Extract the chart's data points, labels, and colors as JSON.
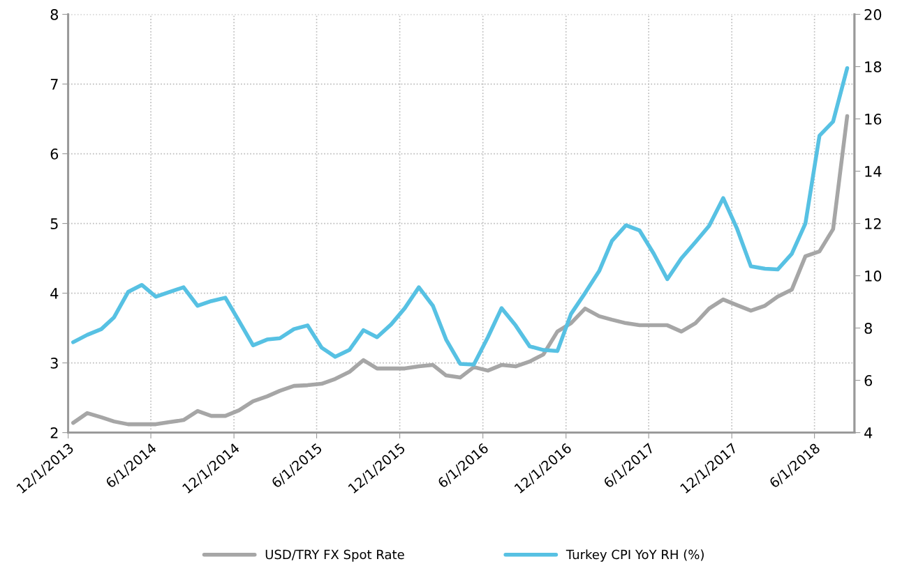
{
  "chart_data": {
    "type": "line",
    "x": [
      "2013-12-12",
      "2014-01-12",
      "2014-02-12",
      "2014-03-12",
      "2014-04-12",
      "2014-05-12",
      "2014-06-12",
      "2014-07-12",
      "2014-08-12",
      "2014-09-12",
      "2014-10-12",
      "2014-11-12",
      "2014-12-12",
      "2015-01-12",
      "2015-02-12",
      "2015-03-12",
      "2015-04-12",
      "2015-05-12",
      "2015-06-12",
      "2015-07-12",
      "2015-08-12",
      "2015-09-12",
      "2015-10-12",
      "2015-11-12",
      "2015-12-12",
      "2016-01-12",
      "2016-02-12",
      "2016-03-12",
      "2016-04-12",
      "2016-05-12",
      "2016-06-12",
      "2016-07-12",
      "2016-08-12",
      "2016-09-12",
      "2016-10-12",
      "2016-11-12",
      "2016-12-12",
      "2017-01-12",
      "2017-02-12",
      "2017-03-12",
      "2017-04-12",
      "2017-05-12",
      "2017-06-12",
      "2017-07-12",
      "2017-08-12",
      "2017-09-12",
      "2017-10-12",
      "2017-11-12",
      "2017-12-12",
      "2018-01-12",
      "2018-02-12",
      "2018-03-12",
      "2018-04-12",
      "2018-05-12",
      "2018-06-12",
      "2018-07-12",
      "2018-08-12"
    ],
    "series": [
      {
        "name": "USD/TRY FX Spot Rate",
        "color": "#a6a6a6",
        "values": [
          2.14,
          2.28,
          2.22,
          2.16,
          2.12,
          2.12,
          2.12,
          2.15,
          2.18,
          2.31,
          2.24,
          2.24,
          2.32,
          2.45,
          2.52,
          2.6,
          2.67,
          2.68,
          2.7,
          2.77,
          2.87,
          3.04,
          2.92,
          2.92,
          2.92,
          2.95,
          2.97,
          2.82,
          2.79,
          2.94,
          2.89,
          2.97,
          2.95,
          3.02,
          3.12,
          3.45,
          3.57,
          3.78,
          3.67,
          3.62,
          3.57,
          3.54,
          3.54,
          3.54,
          3.45,
          3.57,
          3.78,
          3.91,
          3.83,
          3.75,
          3.82,
          3.95,
          4.05,
          4.53,
          4.6,
          4.92,
          6.54
        ]
      },
      {
        "name": "Turkey CPI YoY RH (%)",
        "color": "#57c1e3",
        "axis": "y2",
        "values": [
          7.46,
          7.74,
          7.96,
          8.41,
          9.38,
          9.65,
          9.2,
          9.38,
          9.56,
          8.85,
          9.03,
          9.16,
          8.27,
          7.34,
          7.56,
          7.61,
          7.96,
          8.1,
          7.25,
          6.9,
          7.16,
          7.92,
          7.65,
          8.14,
          8.76,
          9.56,
          8.85,
          7.56,
          6.63,
          6.6,
          7.65,
          8.76,
          8.1,
          7.3,
          7.16,
          7.12,
          8.54,
          9.34,
          10.18,
          11.33,
          11.93,
          11.73,
          10.85,
          9.87,
          10.67,
          11.29,
          11.91,
          12.97,
          11.82,
          10.36,
          10.27,
          10.24,
          10.84,
          12.0,
          15.36,
          15.9,
          17.94
        ]
      }
    ],
    "xlim": [
      "2013-12-01",
      "2018-08-28"
    ],
    "xticks": [
      {
        "value": "2013-12-01",
        "label": "12/1/2013"
      },
      {
        "value": "2014-06-01",
        "label": "6/1/2014"
      },
      {
        "value": "2014-12-01",
        "label": "12/1/2014"
      },
      {
        "value": "2015-06-01",
        "label": "6/1/2015"
      },
      {
        "value": "2015-12-01",
        "label": "12/1/2015"
      },
      {
        "value": "2016-06-01",
        "label": "6/1/2016"
      },
      {
        "value": "2016-12-01",
        "label": "12/1/2016"
      },
      {
        "value": "2017-06-01",
        "label": "6/1/2017"
      },
      {
        "value": "2017-12-01",
        "label": "12/1/2017"
      },
      {
        "value": "2018-06-01",
        "label": "6/1/2018"
      }
    ],
    "ylim": [
      2,
      8
    ],
    "yticks": [
      2,
      3,
      4,
      5,
      6,
      7,
      8
    ],
    "y2lim": [
      4,
      20
    ],
    "y2ticks": [
      4,
      6,
      8,
      10,
      12,
      14,
      16,
      18,
      20
    ],
    "grid": true,
    "legend": "bottom"
  }
}
